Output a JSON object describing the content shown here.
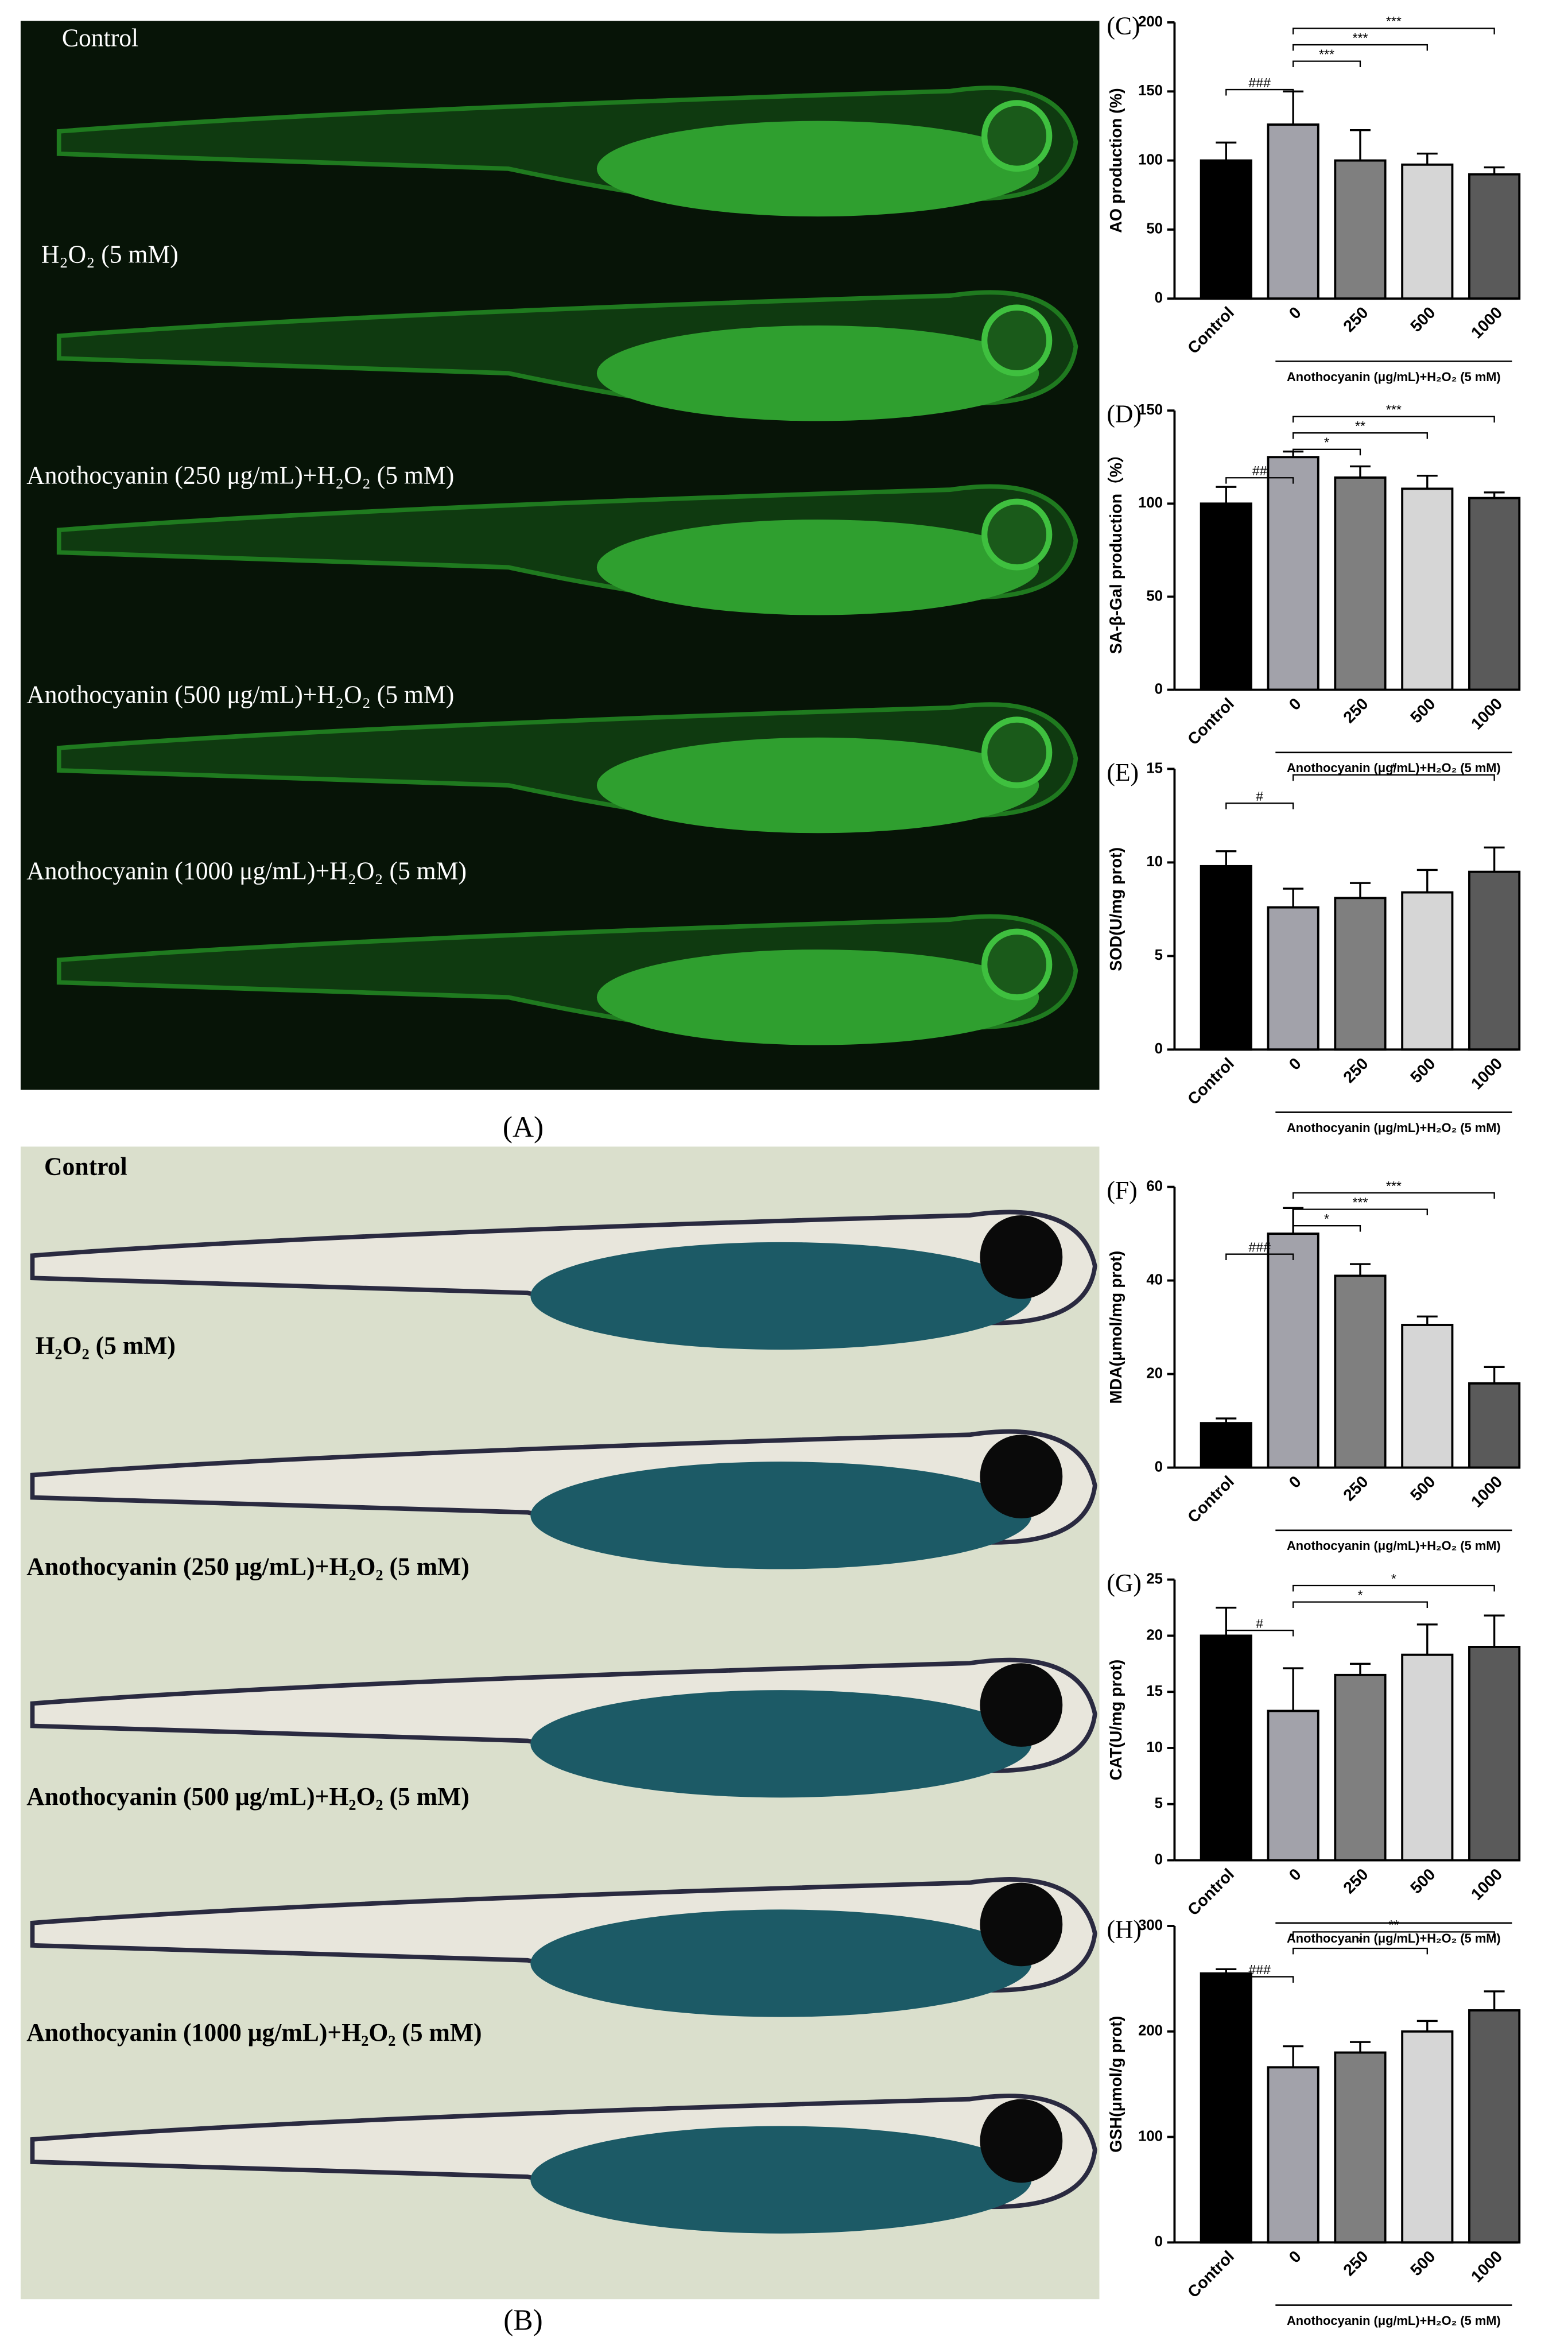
{
  "photo_panels": [
    {
      "label": "(A)",
      "captions": [
        "Control",
        "H₂O₂ (5 mM)",
        "Anothocyanin (250 μg/mL)+H₂O₂ (5 mM)",
        "Anothocyanin (500 μg/mL)+H₂O₂ (5 mM)",
        "Anothocyanin (1000 μg/mL)+H₂O₂ (5 mM)"
      ]
    },
    {
      "label": "(B)",
      "captions": [
        "Control",
        "H₂O₂ (5 mM)",
        "Anothocyanin (250 μg/mL)+H₂O₂ (5 mM)",
        "Anothocyanin (500 μg/mL)+H₂O₂ (5 mM)",
        "Anothocyanin (1000 μg/mL)+H₂O₂ (5 mM)"
      ]
    }
  ],
  "chart_data": [
    {
      "type": "bar",
      "title": "(C)",
      "ylabel": "AO production (%)",
      "xlabel": "Anothocyanin (μg/mL)+H₂O₂ (5 mM)",
      "categories": [
        "Control",
        "0",
        "250",
        "500",
        "1000"
      ],
      "values": [
        100,
        126,
        100,
        97,
        90
      ],
      "errors": [
        13,
        24,
        22,
        8,
        5
      ],
      "colors": [
        "#000000",
        "#a2a2aa",
        "#7f7f7f",
        "#d6d6d6",
        "#5a5a5a"
      ],
      "ylim": [
        0,
        200
      ],
      "yticks": [
        0,
        50,
        100,
        150,
        200
      ],
      "annotations": [
        {
          "label": "###",
          "between": [
            "Control",
            "0"
          ]
        },
        {
          "label": "***",
          "between": [
            "0",
            "250"
          ]
        },
        {
          "label": "***",
          "between": [
            "0",
            "500"
          ]
        },
        {
          "label": "***",
          "between": [
            "0",
            "1000"
          ]
        }
      ]
    },
    {
      "type": "bar",
      "title": "(D)",
      "ylabel": "SA-β-Gal production（%）",
      "xlabel": "Anothocyanin (μg/mL)+H₂O₂ (5 mM)",
      "categories": [
        "Control",
        "0",
        "250",
        "500",
        "1000"
      ],
      "values": [
        100,
        125,
        114,
        108,
        103
      ],
      "errors": [
        9,
        3,
        6,
        7,
        3
      ],
      "colors": [
        "#000000",
        "#a2a2aa",
        "#7f7f7f",
        "#d6d6d6",
        "#5a5a5a"
      ],
      "ylim": [
        0,
        150
      ],
      "yticks": [
        0,
        50,
        100,
        150
      ],
      "annotations": [
        {
          "label": "##",
          "between": [
            "Control",
            "0"
          ]
        },
        {
          "label": "*",
          "between": [
            "0",
            "250"
          ]
        },
        {
          "label": "**",
          "between": [
            "0",
            "500"
          ]
        },
        {
          "label": "***",
          "between": [
            "0",
            "1000"
          ]
        }
      ]
    },
    {
      "type": "bar",
      "title": "(E)",
      "ylabel": "SOD(U/mg prot)",
      "xlabel": "Anothocyanin (μg/mL)+H₂O₂ (5 mM)",
      "categories": [
        "Control",
        "0",
        "250",
        "500",
        "1000"
      ],
      "values": [
        9.8,
        7.6,
        8.1,
        8.4,
        9.5
      ],
      "errors": [
        0.8,
        1.0,
        0.8,
        1.2,
        1.3
      ],
      "colors": [
        "#000000",
        "#a2a2aa",
        "#7f7f7f",
        "#d6d6d6",
        "#5a5a5a"
      ],
      "ylim": [
        0,
        15
      ],
      "yticks": [
        0,
        5,
        10,
        15
      ],
      "annotations": [
        {
          "label": "#",
          "between": [
            "Control",
            "0"
          ]
        },
        {
          "label": "*",
          "between": [
            "0",
            "1000"
          ]
        }
      ]
    },
    {
      "type": "bar",
      "title": "(F)",
      "ylabel": "MDA(μmol/mg prot)",
      "xlabel": "Anothocyanin (μg/mL)+H₂O₂ (5 mM)",
      "categories": [
        "Control",
        "0",
        "250",
        "500",
        "1000"
      ],
      "values": [
        9.5,
        50,
        41,
        30.5,
        18
      ],
      "errors": [
        1,
        5.5,
        2.5,
        1.8,
        3.5
      ],
      "colors": [
        "#000000",
        "#a2a2aa",
        "#7f7f7f",
        "#d6d6d6",
        "#5a5a5a"
      ],
      "ylim": [
        0,
        60
      ],
      "yticks": [
        0,
        20,
        40,
        60
      ],
      "annotations": [
        {
          "label": "###",
          "between": [
            "Control",
            "0"
          ]
        },
        {
          "label": "*",
          "between": [
            "0",
            "250"
          ]
        },
        {
          "label": "***",
          "between": [
            "0",
            "500"
          ]
        },
        {
          "label": "***",
          "between": [
            "0",
            "1000"
          ]
        }
      ]
    },
    {
      "type": "bar",
      "title": "(G)",
      "ylabel": "CAT(U/mg prot)",
      "xlabel": "Anothocyanin (μg/mL)+H₂O₂ (5 mM)",
      "categories": [
        "Control",
        "0",
        "250",
        "500",
        "1000"
      ],
      "values": [
        20,
        13.3,
        16.5,
        18.3,
        19
      ],
      "errors": [
        2.5,
        3.8,
        1,
        2.7,
        2.8
      ],
      "colors": [
        "#000000",
        "#a2a2aa",
        "#7f7f7f",
        "#d6d6d6",
        "#5a5a5a"
      ],
      "ylim": [
        0,
        25
      ],
      "yticks": [
        0,
        5,
        10,
        15,
        20,
        25
      ],
      "annotations": [
        {
          "label": "#",
          "between": [
            "Control",
            "0"
          ]
        },
        {
          "label": "*",
          "between": [
            "0",
            "500"
          ]
        },
        {
          "label": "*",
          "between": [
            "0",
            "1000"
          ]
        }
      ]
    },
    {
      "type": "bar",
      "title": "(H)",
      "ylabel": "GSH(μmol/g prot)",
      "xlabel": "Anothocyanin (μg/mL)+H₂O₂ (5 mM)",
      "categories": [
        "Control",
        "0",
        "250",
        "500",
        "1000"
      ],
      "values": [
        255,
        166,
        180,
        200,
        220
      ],
      "errors": [
        4,
        20,
        10,
        10,
        18
      ],
      "colors": [
        "#000000",
        "#a2a2aa",
        "#7f7f7f",
        "#d6d6d6",
        "#5a5a5a"
      ],
      "ylim": [
        0,
        300
      ],
      "yticks": [
        0,
        100,
        200,
        300
      ],
      "annotations": [
        {
          "label": "###",
          "between": [
            "Control",
            "0"
          ]
        },
        {
          "label": "*",
          "between": [
            "0",
            "500"
          ]
        },
        {
          "label": "**",
          "between": [
            "0",
            "1000"
          ]
        }
      ]
    }
  ]
}
